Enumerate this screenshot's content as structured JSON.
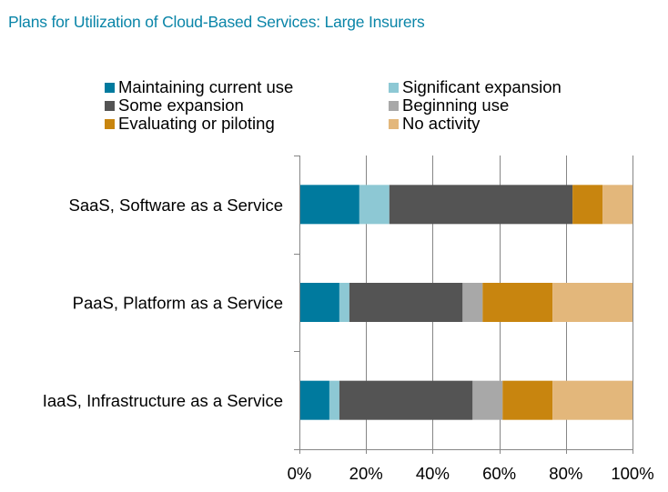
{
  "chart_data": {
    "type": "bar",
    "orientation": "horizontal",
    "stacked": "percent",
    "title": "Plans for Utilization  of Cloud-Based Services: Large Insurers",
    "xlabel": "",
    "ylabel": "",
    "xlim": [
      0,
      100
    ],
    "x_ticks": [
      "0%",
      "20%",
      "40%",
      "60%",
      "80%",
      "100%"
    ],
    "grid": true,
    "legend_position": "top",
    "categories": [
      "SaaS,  Software as a Service",
      "PaaS, Platform as a Service",
      "IaaS, Infrastructure as a Service"
    ],
    "series": [
      {
        "name": "Maintaining current use",
        "color": "#007a9e",
        "values": [
          18,
          12,
          9
        ]
      },
      {
        "name": "Significant expansion",
        "color": "#8dc8d4",
        "values": [
          9,
          3,
          3
        ]
      },
      {
        "name": "Some expansion",
        "color": "#545454",
        "values": [
          55,
          34,
          40
        ]
      },
      {
        "name": "Beginning use",
        "color": "#a8a8a8",
        "values": [
          0,
          6,
          9
        ]
      },
      {
        "name": "Evaluating or piloting",
        "color": "#c8850f",
        "values": [
          9,
          21,
          15
        ]
      },
      {
        "name": "No activity",
        "color": "#e3b77b",
        "values": [
          9,
          24,
          24
        ]
      }
    ]
  }
}
